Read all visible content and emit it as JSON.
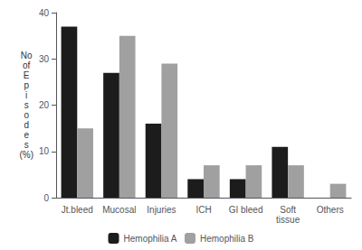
{
  "chart_data": {
    "type": "bar",
    "categories": [
      "Jt.bleed",
      "Mucosal",
      "Injuries",
      "ICH",
      "GI bleed",
      "Soft\ntissue",
      "Others"
    ],
    "series": [
      {
        "name": "Hemophilia A",
        "color": "#1c1c1c",
        "values": [
          37,
          27,
          16,
          4,
          4,
          11,
          0
        ]
      },
      {
        "name": "Hemophilia B",
        "color": "#a0a0a0",
        "values": [
          15,
          35,
          29,
          7,
          7,
          7,
          3
        ]
      }
    ],
    "ylabel": "No\nof\nE\np\ni\ns\no\nd\ne\ns\n(%)",
    "ylim": [
      0,
      40
    ],
    "yticks": [
      0,
      10,
      20,
      30,
      40
    ],
    "grid": false,
    "legend": "bottom"
  }
}
